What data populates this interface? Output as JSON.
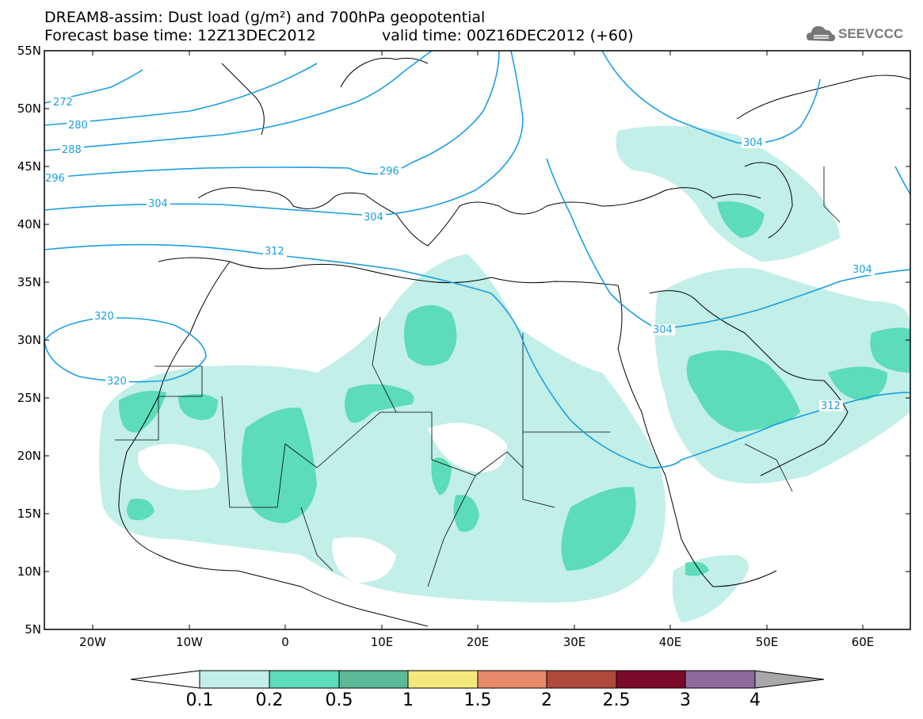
{
  "header": {
    "title": "DREAM8-assim: Dust load (g/m²) and 700hPa geopotential",
    "forecast": "Forecast base time: 12Z13DEC2012",
    "valid": "valid time: 00Z16DEC2012 (+60)",
    "logo_text": "SEEVCCC"
  },
  "map": {
    "lat_labels": [
      "55N",
      "50N",
      "45N",
      "40N",
      "35N",
      "30N",
      "25N",
      "20N",
      "15N",
      "10N",
      "5N"
    ],
    "lon_labels": [
      "20W",
      "10W",
      "0",
      "10E",
      "20E",
      "30E",
      "40E",
      "50E",
      "60E"
    ],
    "contour_labels": [
      "272",
      "280",
      "288",
      "296",
      "304",
      "312",
      "320",
      "296",
      "304",
      "304",
      "304",
      "304",
      "312",
      "320"
    ],
    "colors": {
      "contour": "#1a9fe0",
      "dust_low": "#c2efe8",
      "dust_mid": "#5cdcb8",
      "border": "#000000"
    }
  },
  "colorbar": {
    "labels": [
      "0.1",
      "0.2",
      "0.5",
      "1",
      "1.5",
      "2",
      "2.5",
      "3",
      "4"
    ],
    "colors": [
      "#c2efe8",
      "#5cdcb8",
      "#5cb998",
      "#f4e87a",
      "#e8896a",
      "#b04a3c",
      "#7a0a2a",
      "#8c6a9c"
    ]
  }
}
